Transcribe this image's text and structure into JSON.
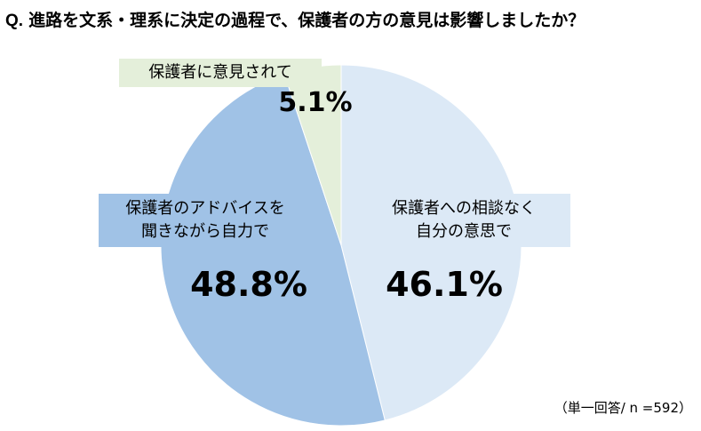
{
  "title": {
    "prefix": "Q.",
    "text": "進路を文系・理系に決定の過程で、保護者の方の意見は影響しましたか？"
  },
  "note": "（単一回答/ n =592）",
  "colors": {
    "self": "#dce9f6",
    "with_parents": "#a0c2e6",
    "parents_said": "#e4efda"
  },
  "chart_data": {
    "type": "pie",
    "title": "進路を文系・理系に決定の過程で、保護者の方の意見は影響しましたか？",
    "unit": "%",
    "slices": [
      {
        "label": "保護者への相談なく自分の意思で",
        "value": 46.1,
        "value_label": "46.1%",
        "color": "#dce9f6"
      },
      {
        "label": "保護者のアドバイスを聞きながら自力で",
        "value": 48.8,
        "value_label": "48.8%",
        "color": "#a0c2e6"
      },
      {
        "label": "保護者に意見されて",
        "value": 5.1,
        "value_label": "5.1%",
        "color": "#e4efda"
      }
    ],
    "labels": {
      "self_line1": "保護者への相談なく",
      "self_line2": "自分の意思で",
      "parents_line1": "保護者のアドバイスを",
      "parents_line2": "聞きながら自力で",
      "said": "保護者に意見されて"
    }
  }
}
